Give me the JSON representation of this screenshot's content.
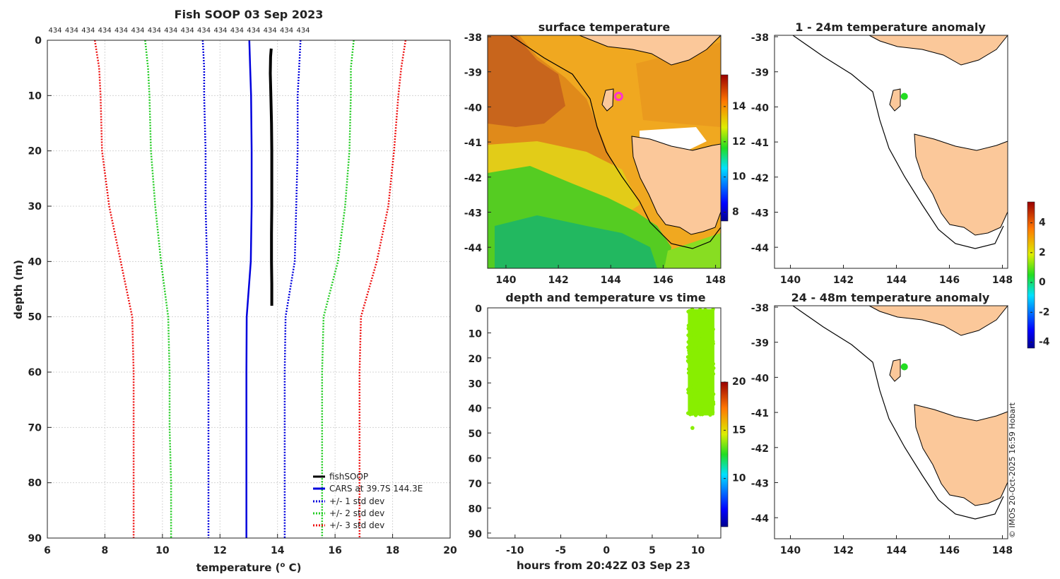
{
  "chart_data": [
    {
      "id": "profile",
      "type": "line",
      "title": "Fish SOOP 03 Sep 2023",
      "xlabel": "temperature (",
      "xlabel_sup": "o",
      "xlabel_suffix": " C)",
      "ylabel": "depth (m)",
      "xlim": [
        6,
        20
      ],
      "ylim": [
        0,
        90
      ],
      "xticks": [
        6,
        8,
        10,
        12,
        14,
        16,
        18,
        20
      ],
      "yticks": [
        0,
        10,
        20,
        30,
        40,
        50,
        60,
        70,
        80,
        90
      ],
      "top_labels": [
        "434",
        "434",
        "434",
        "434",
        "434",
        "434",
        "434",
        "434",
        "434",
        "434",
        "434",
        "434",
        "434",
        "434",
        "434",
        "434"
      ],
      "series": [
        {
          "name": "fishSOOP",
          "color": "#000000",
          "style": "solid",
          "width": 4,
          "points": [
            [
              13.78,
              1.5
            ],
            [
              13.76,
              3
            ],
            [
              13.75,
              6
            ],
            [
              13.77,
              10
            ],
            [
              13.79,
              15
            ],
            [
              13.8,
              20
            ],
            [
              13.8,
              25
            ],
            [
              13.8,
              30
            ],
            [
              13.79,
              35
            ],
            [
              13.79,
              40
            ],
            [
              13.8,
              44
            ],
            [
              13.8,
              48
            ]
          ]
        },
        {
          "name": "CARS at 39.7S 144.3E",
          "color": "#0000dd",
          "style": "solid",
          "width": 2.5,
          "points": [
            [
              13.02,
              0
            ],
            [
              13.05,
              5
            ],
            [
              13.08,
              10
            ],
            [
              13.1,
              20
            ],
            [
              13.1,
              30
            ],
            [
              13.07,
              40
            ],
            [
              12.93,
              50
            ],
            [
              12.92,
              60
            ],
            [
              12.92,
              70
            ],
            [
              12.92,
              80
            ],
            [
              12.92,
              90
            ]
          ]
        },
        {
          "name": "+/- 1 std dev",
          "color": "#0000dd",
          "style": "dotted",
          "width": 2.5,
          "mirror": true,
          "left": [
            [
              11.4,
              0
            ],
            [
              11.45,
              5
            ],
            [
              11.45,
              10
            ],
            [
              11.5,
              20
            ],
            [
              11.5,
              30
            ],
            [
              11.55,
              40
            ],
            [
              11.58,
              50
            ],
            [
              11.6,
              60
            ],
            [
              11.6,
              70
            ],
            [
              11.6,
              80
            ],
            [
              11.6,
              90
            ]
          ],
          "right": [
            [
              14.8,
              0
            ],
            [
              14.75,
              5
            ],
            [
              14.7,
              10
            ],
            [
              14.7,
              20
            ],
            [
              14.65,
              30
            ],
            [
              14.6,
              40
            ],
            [
              14.28,
              50
            ],
            [
              14.25,
              60
            ],
            [
              14.25,
              70
            ],
            [
              14.25,
              80
            ],
            [
              14.25,
              90
            ]
          ]
        },
        {
          "name": "+/- 2 std dev",
          "color": "#22cc22",
          "style": "dotted",
          "width": 2.5,
          "mirror": true,
          "left": [
            [
              9.4,
              0
            ],
            [
              9.5,
              5
            ],
            [
              9.55,
              10
            ],
            [
              9.6,
              20
            ],
            [
              9.75,
              30
            ],
            [
              9.95,
              40
            ],
            [
              10.2,
              50
            ],
            [
              10.25,
              60
            ],
            [
              10.25,
              70
            ],
            [
              10.3,
              80
            ],
            [
              10.3,
              90
            ]
          ],
          "right": [
            [
              16.65,
              0
            ],
            [
              16.55,
              5
            ],
            [
              16.55,
              10
            ],
            [
              16.5,
              20
            ],
            [
              16.35,
              30
            ],
            [
              16.1,
              40
            ],
            [
              15.6,
              50
            ],
            [
              15.55,
              60
            ],
            [
              15.55,
              70
            ],
            [
              15.55,
              80
            ],
            [
              15.55,
              90
            ]
          ]
        },
        {
          "name": "+/- 3 std dev",
          "color": "#ee1111",
          "style": "dotted",
          "width": 2.5,
          "mirror": true,
          "left": [
            [
              7.65,
              0
            ],
            [
              7.8,
              5
            ],
            [
              7.85,
              10
            ],
            [
              7.9,
              20
            ],
            [
              8.15,
              30
            ],
            [
              8.55,
              40
            ],
            [
              8.95,
              50
            ],
            [
              9,
              60
            ],
            [
              9,
              70
            ],
            [
              9,
              80
            ],
            [
              9,
              90
            ]
          ],
          "right": [
            [
              18.45,
              0
            ],
            [
              18.3,
              5
            ],
            [
              18.2,
              10
            ],
            [
              18.05,
              20
            ],
            [
              17.85,
              30
            ],
            [
              17.45,
              40
            ],
            [
              16.9,
              50
            ],
            [
              16.85,
              60
            ],
            [
              16.85,
              70
            ],
            [
              16.85,
              80
            ],
            [
              16.85,
              90
            ]
          ]
        }
      ]
    },
    {
      "id": "sst",
      "type": "heatmap",
      "title": "surface temperature",
      "xlim": [
        139.3,
        148.2
      ],
      "ylim": [
        -44.6,
        -38
      ],
      "xticks": [
        140,
        142,
        144,
        146,
        148
      ],
      "yticks": [
        -38,
        -39,
        -40,
        -41,
        -42,
        -43,
        -44
      ],
      "colorbar": {
        "ticks": [
          8,
          10,
          12,
          14
        ],
        "range": [
          7.5,
          15.8
        ]
      },
      "point": {
        "lon": 144.3,
        "lat": -39.7,
        "color": "#ff33cc"
      }
    },
    {
      "id": "anom1",
      "type": "heatmap",
      "title": "1 - 24m temperature anomaly",
      "xlim": [
        139.4,
        148.2
      ],
      "ylim": [
        -44.6,
        -38
      ],
      "xticks": [
        140,
        142,
        144,
        146,
        148
      ],
      "yticks": [
        -38,
        -39,
        -40,
        -41,
        -42,
        -43,
        -44
      ],
      "point": {
        "lon": 144.3,
        "lat": -39.7,
        "color": "#22dd22"
      }
    },
    {
      "id": "anom2",
      "type": "heatmap",
      "title": "24 - 48m temperature anomaly",
      "xlim": [
        139.4,
        148.2
      ],
      "ylim": [
        -44.6,
        -38
      ],
      "xticks": [
        140,
        142,
        144,
        146,
        148
      ],
      "yticks": [
        -38,
        -39,
        -40,
        -41,
        -42,
        -43,
        -44
      ],
      "point": {
        "lon": 144.3,
        "lat": -39.7,
        "color": "#22dd22"
      }
    },
    {
      "id": "anom_colorbar",
      "type": "colorbar",
      "ticks": [
        -4,
        -2,
        0,
        2,
        4
      ],
      "range": [
        -4.4,
        5.4
      ]
    },
    {
      "id": "timeseries",
      "type": "scatter",
      "title": "depth and temperature vs time",
      "xlabel": "hours from 20:42Z 03 Sep 23",
      "xlim": [
        -13,
        12.5
      ],
      "ylim": [
        0,
        92
      ],
      "xticks": [
        -10,
        -5,
        0,
        5,
        10
      ],
      "yticks": [
        0,
        10,
        20,
        30,
        40,
        50,
        60,
        70,
        80,
        90
      ],
      "time_range": [
        8.9,
        11.8
      ],
      "depth_range": [
        0.5,
        43
      ],
      "outlier": {
        "x": 9.4,
        "y": 48
      },
      "point_color": "#88ee00",
      "colorbar": {
        "ticks": [
          10,
          15,
          20
        ],
        "range": [
          5,
          20
        ]
      }
    }
  ],
  "credit": "© IMOS 20-Oct-2025 16:59 Hobart"
}
